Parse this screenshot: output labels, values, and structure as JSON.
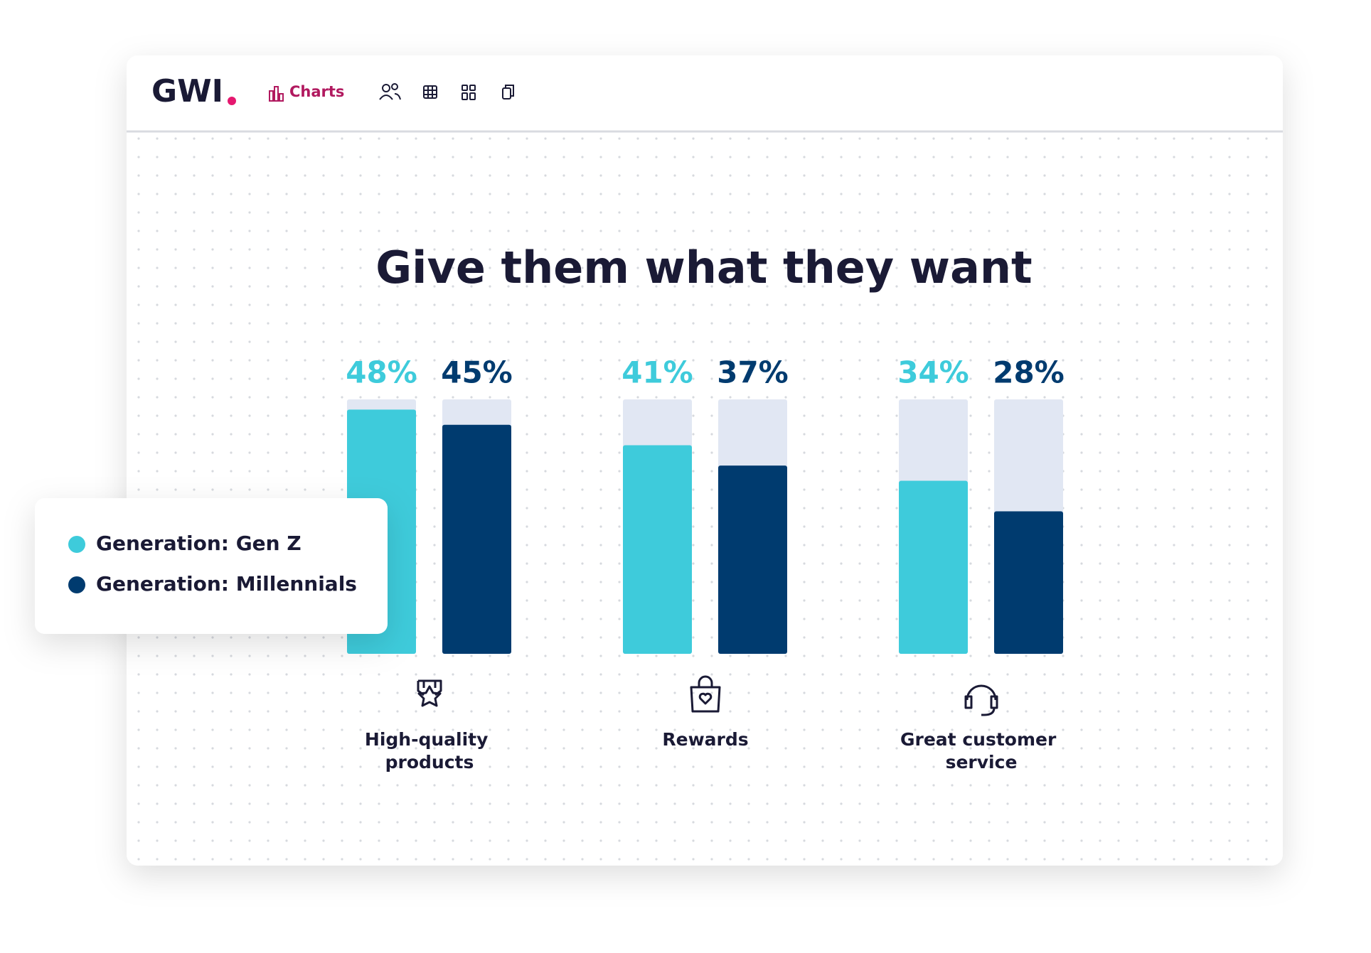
{
  "nav": {
    "logo": "GWI",
    "active_tab": "Charts"
  },
  "chart_data": {
    "type": "bar",
    "title": "Give them what they want",
    "categories": [
      "High-quality products",
      "Rewards",
      "Great customer service"
    ],
    "series": [
      {
        "name": "Generation: Gen Z",
        "color": "#3ecbdb",
        "values": [
          48,
          41,
          34
        ],
        "value_labels": [
          "48%",
          "41%",
          "34%"
        ]
      },
      {
        "name": "Generation: Millennials",
        "color": "#003b6f",
        "values": [
          45,
          37,
          28
        ],
        "value_labels": [
          "45%",
          "37%",
          "28%"
        ]
      }
    ],
    "ylim": [
      0,
      50
    ],
    "track_color": "#e1e7f3"
  }
}
